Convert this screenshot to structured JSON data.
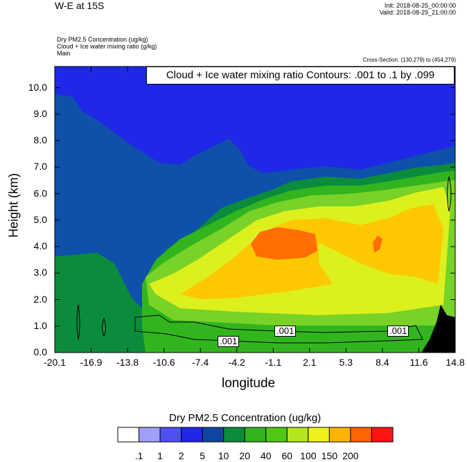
{
  "header": {
    "title": "W-E at 15S",
    "init": "Init: 2018-08-25_00:00:00",
    "valid": "Valid: 2018-08-29_21:00:00",
    "field1": "Dry PM2.5 Concentration   (ug/kg)",
    "field2": "Cloud + Ice water mixing ratio   (g/kg)",
    "field3": "Main",
    "cross_section": "Cross-Section: (130,279) to (454,279)",
    "contour_note": "Cloud + Ice water mixing ratio Contours: .001 to .1 by .099"
  },
  "chart_data": {
    "type": "heatmap",
    "title": "",
    "xlabel": "longitude",
    "ylabel": "Height (km)",
    "xlim": [
      -20.1,
      14.8
    ],
    "ylim": [
      0.0,
      10.8
    ],
    "x_ticks": [
      "-20.1",
      "-16.9",
      "-13.8",
      "-10.6",
      "-7.4",
      "-4.2",
      "-1.1",
      "2.1",
      "5.3",
      "8.4",
      "11.6",
      "14.8"
    ],
    "y_ticks": [
      "0.0",
      "1.0",
      "2.0",
      "3.0",
      "4.0",
      "5.0",
      "6.0",
      "7.0",
      "8.0",
      "9.0",
      "10.0"
    ],
    "y_tick_values": [
      0,
      1,
      2,
      3,
      4,
      5,
      6,
      7,
      8,
      9,
      10
    ],
    "colorbar": {
      "title": "Dry PM2.5 Concentration  (ug/kg)",
      "labels": [
        ".1",
        "1",
        "2",
        "5",
        "10",
        "20",
        "40",
        "60",
        "100",
        "150",
        "200"
      ],
      "colors": [
        "#ffffff",
        "#a0a0f8",
        "#5050f0",
        "#1e28e6",
        "#0f46a0",
        "#0a8c3c",
        "#32b41e",
        "#50c814",
        "#b4e61e",
        "#f0f01e",
        "#ffb400",
        "#ff6400",
        "#ff1414"
      ]
    },
    "regions": [
      {
        "level": "5-10",
        "color": "#0f50aa"
      },
      {
        "level": "10-20",
        "color": "#0a8c3c"
      },
      {
        "level": "20-40",
        "color": "#32b41e"
      },
      {
        "level": "40-60",
        "color": "#78d228"
      },
      {
        "level": "60-100",
        "color": "#dcf01e"
      },
      {
        "level": "100-150",
        "color": "#ffc800"
      },
      {
        "level": "150-200",
        "color": "#ff6e00"
      }
    ],
    "contour_labels": [
      ".001",
      ".001",
      ".001"
    ],
    "terrain_color": "#000000"
  }
}
